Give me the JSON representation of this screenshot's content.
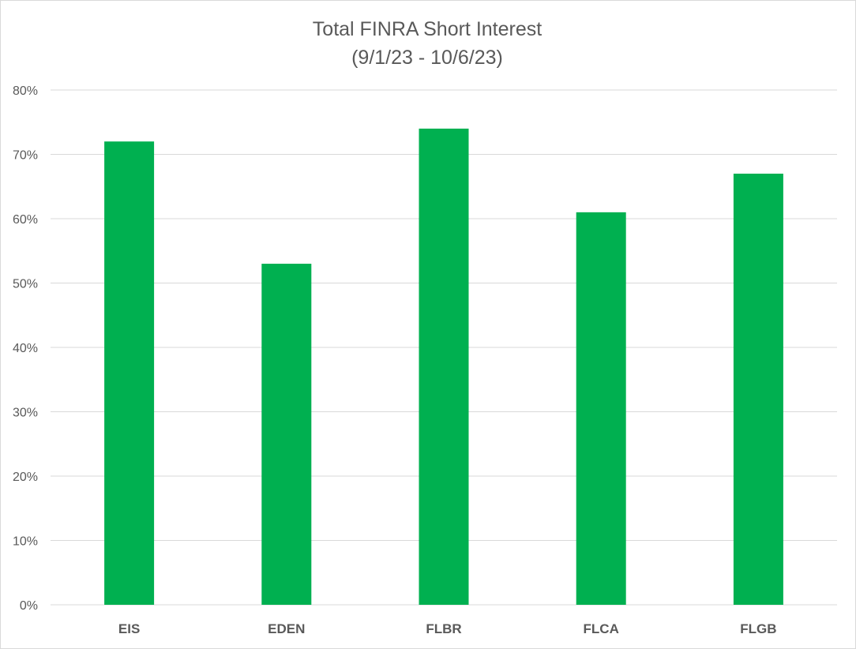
{
  "chart_data": {
    "type": "bar",
    "title": "Total FINRA Short Interest",
    "subtitle": "(9/1/23 - 10/6/23)",
    "categories": [
      "EIS",
      "EDEN",
      "FLBR",
      "FLCA",
      "FLGB"
    ],
    "values": [
      0.72,
      0.53,
      0.74,
      0.61,
      0.67
    ],
    "xlabel": "",
    "ylabel": "",
    "ylim": [
      0,
      0.8
    ],
    "yticks": [
      0,
      0.1,
      0.2,
      0.3,
      0.4,
      0.5,
      0.6,
      0.7,
      0.8
    ],
    "ytick_labels": [
      "0%",
      "10%",
      "20%",
      "30%",
      "40%",
      "50%",
      "60%",
      "70%",
      "80%"
    ],
    "grid": true,
    "legend": "none",
    "bar_color": "#00B050",
    "grid_color": "#d9d9d9",
    "text_color": "#595959"
  }
}
